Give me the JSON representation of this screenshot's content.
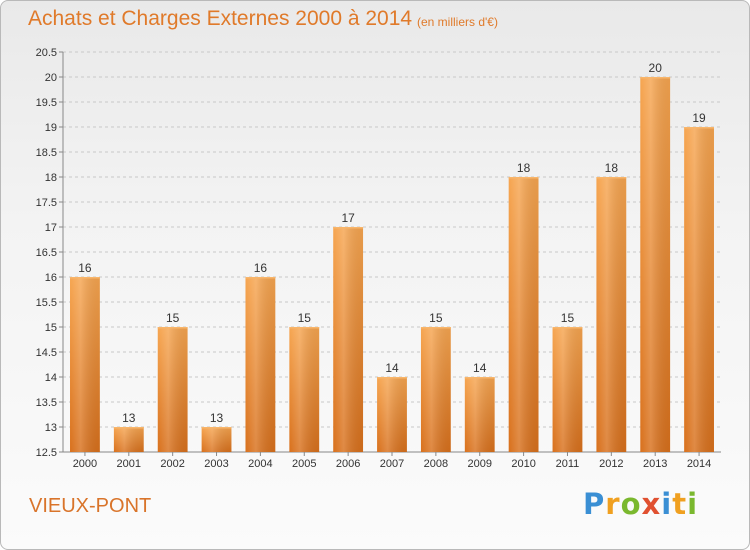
{
  "chart_data": {
    "type": "bar",
    "title": "Achats et Charges Externes 2000 à 2014",
    "subtitle": "(en milliers d'€)",
    "categories": [
      "2000",
      "2001",
      "2002",
      "2003",
      "2004",
      "2005",
      "2006",
      "2007",
      "2008",
      "2009",
      "2010",
      "2011",
      "2012",
      "2013",
      "2014"
    ],
    "values": [
      16,
      13,
      15,
      13,
      16,
      15,
      17,
      14,
      15,
      14,
      18,
      15,
      18,
      20,
      19
    ],
    "value_labels": [
      "16",
      "13",
      "15",
      "13",
      "16",
      "15",
      "17",
      "14",
      "15",
      "14",
      "18",
      "15",
      "18",
      "20",
      "19"
    ],
    "ylim": [
      12.5,
      20.5
    ],
    "yticks": [
      12.5,
      13,
      13.5,
      14,
      14.5,
      15,
      15.5,
      16,
      16.5,
      17,
      17.5,
      18,
      18.5,
      19,
      19.5,
      20,
      20.5
    ],
    "ytick_labels": [
      "12.5",
      "13",
      "13.5",
      "14",
      "14.5",
      "15",
      "15.5",
      "16",
      "16.5",
      "17",
      "17.5",
      "18",
      "18.5",
      "19",
      "19.5",
      "20",
      "20.5"
    ],
    "grid": "horizontal dashed",
    "bar_color": "#f29a3f",
    "bar_color_dark": "#d9731e"
  },
  "place": "VIEUX-PONT",
  "logo": {
    "letters": [
      "P",
      "r",
      "o",
      "x",
      "i",
      "t",
      "i"
    ],
    "colors": [
      "#3a8fd4",
      "#f0a020",
      "#7ab82e",
      "#e05030",
      "#3a8fd4",
      "#f0a020",
      "#7ab82e"
    ]
  }
}
